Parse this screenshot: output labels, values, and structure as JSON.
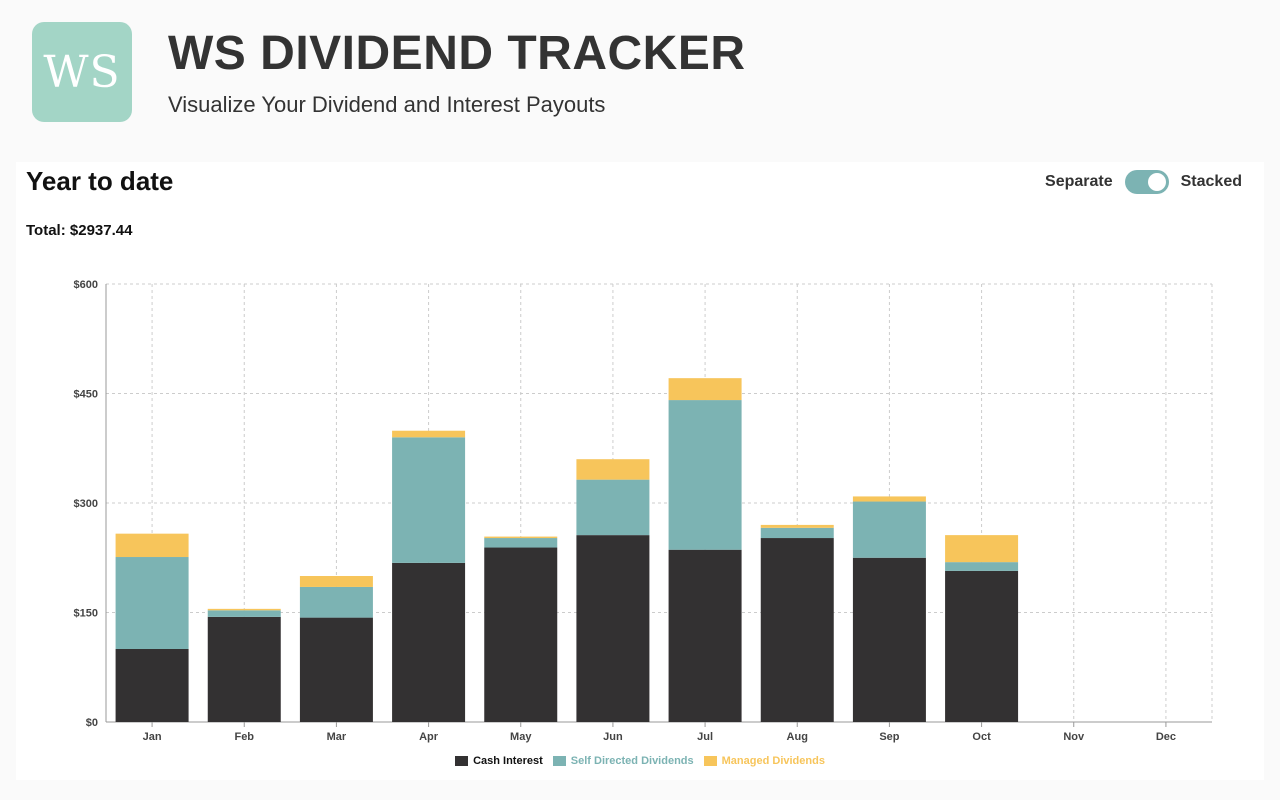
{
  "header": {
    "logo_text": "WS",
    "title": "WS DIVIDEND TRACKER",
    "subtitle": "Visualize Your Dividend and Interest Payouts"
  },
  "panel": {
    "title": "Year to date",
    "total": "Total: $2937.44",
    "toggle": {
      "left_label": "Separate",
      "right_label": "Stacked",
      "state": "Stacked"
    }
  },
  "colors": {
    "cash_interest": "#333132",
    "self_directed": "#7cb3b3",
    "managed": "#f7c55b",
    "logo_bg": "#a3d5c6"
  },
  "chart_data": {
    "type": "bar",
    "stacked": true,
    "categories": [
      "Jan",
      "Feb",
      "Mar",
      "Apr",
      "May",
      "Jun",
      "Jul",
      "Aug",
      "Sep",
      "Oct",
      "Nov",
      "Dec"
    ],
    "series": [
      {
        "name": "Cash Interest",
        "color": "#333132",
        "values": [
          100,
          144,
          143,
          218,
          239,
          256,
          236,
          252,
          225,
          207,
          0,
          0
        ]
      },
      {
        "name": "Self Directed Dividends",
        "color": "#7cb3b3",
        "values": [
          126,
          9,
          42,
          172,
          13,
          76,
          205,
          14,
          77,
          12,
          0,
          0
        ]
      },
      {
        "name": "Managed Dividends",
        "color": "#f7c55b",
        "values": [
          32,
          2,
          15,
          9,
          2,
          28,
          30,
          4,
          7,
          37,
          0,
          0
        ]
      }
    ],
    "y_ticks": [
      "$0",
      "$150",
      "$300",
      "$450",
      "$600"
    ],
    "y_tick_values": [
      0,
      150,
      300,
      450,
      600
    ],
    "ylim": [
      0,
      600
    ],
    "grid": true,
    "legend_position": "bottom-center"
  }
}
